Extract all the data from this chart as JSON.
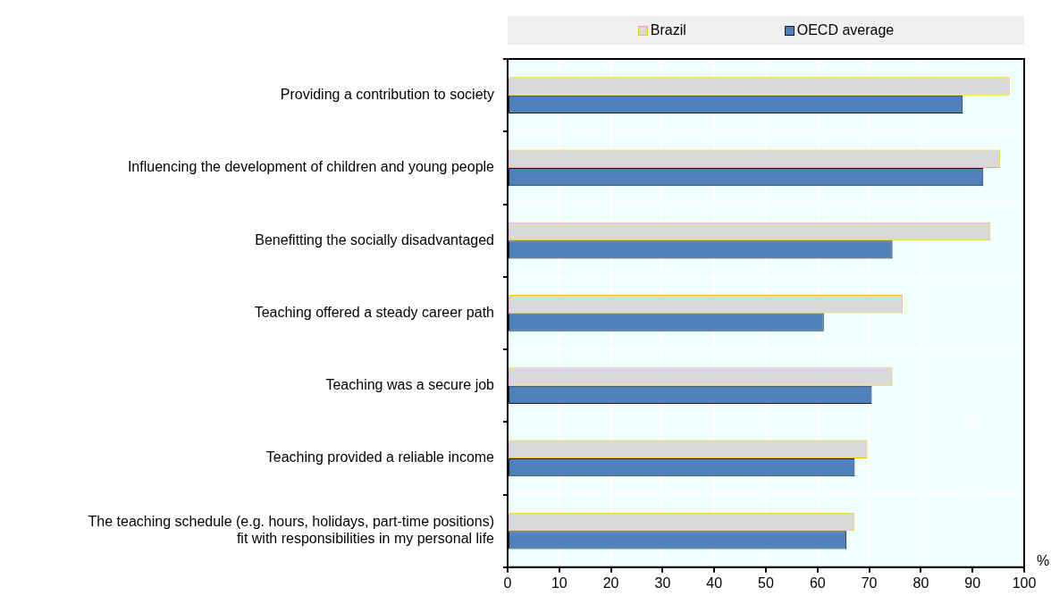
{
  "chart_data": {
    "type": "bar",
    "orientation": "horizontal",
    "xlabel": "%",
    "categories": [
      "Providing a contribution to society",
      "Influencing the development of children and young people",
      "Benefitting the socially disadvantaged",
      "Teaching offered a steady career path",
      "Teaching was a secure job",
      "Teaching provided a reliable income",
      "The teaching schedule (e.g. hours, holidays, part-time positions)\nfit with responsibilities in my personal life"
    ],
    "series": [
      {
        "name": "Brazil",
        "color": "#d9d9d9",
        "values": [
          97.2,
          95.3,
          93.5,
          76.5,
          74.5,
          69.6,
          67.2
        ]
      },
      {
        "name": "OECD average",
        "color": "#4f81bd",
        "values": [
          88.1,
          92.1,
          74.5,
          61.2,
          70.5,
          67.2,
          65.6
        ]
      }
    ],
    "xlim": [
      0,
      100
    ],
    "xticks": [
      0,
      10,
      20,
      30,
      40,
      50,
      60,
      70,
      80,
      90,
      100
    ],
    "grid": true,
    "legend": "top"
  }
}
